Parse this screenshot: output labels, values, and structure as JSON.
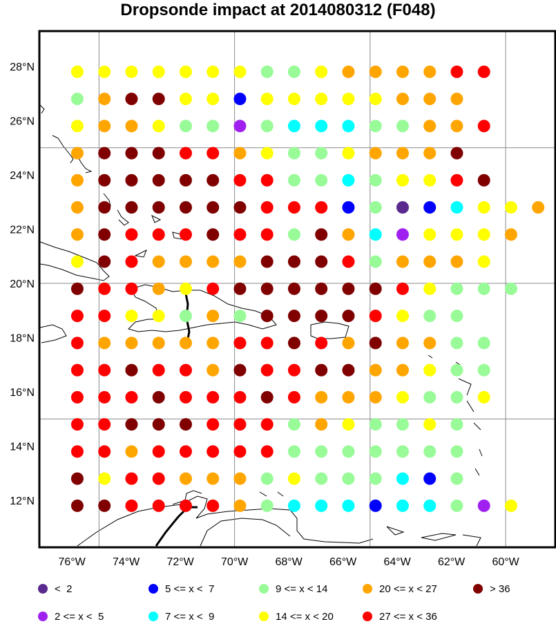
{
  "title": "Dropsonde impact at 2014080312 (F048)",
  "lat_labels": [
    "28°N",
    "26°N",
    "24°N",
    "22°N",
    "20°N",
    "18°N",
    "16°N",
    "14°N",
    "12°N"
  ],
  "lon_labels": [
    "76°W",
    "74°W",
    "72°W",
    "70°W",
    "68°W",
    "66°W",
    "64°W",
    "62°W",
    "60°W"
  ],
  "lat_values": [
    28,
    26,
    24,
    22,
    20,
    18,
    16,
    14,
    12
  ],
  "lon_values": [
    -76,
    -74,
    -72,
    -70,
    -68,
    -66,
    -64,
    -62,
    -60
  ],
  "grid_lats": [
    25,
    20,
    15
  ],
  "grid_lons": [
    -75,
    -70,
    -65,
    -60
  ],
  "colors": {
    "a": "#5b2a8f",
    "b": "#a020f0",
    "c": "#0000ff",
    "d": "#00ffff",
    "e": "#98fb98",
    "f": "#ffff00",
    "g": "#ffa500",
    "h": "#ff0000",
    "i": "#800000"
  },
  "legend": [
    {
      "key": "a",
      "label": "<  2"
    },
    {
      "key": "b",
      "label": "2 <= x <  5"
    },
    {
      "key": "c",
      "label": "5 <= x <  7"
    },
    {
      "key": "d",
      "label": "7 <= x <  9"
    },
    {
      "key": "e",
      "label": "9 <= x < 14"
    },
    {
      "key": "f",
      "label": "14 <= x < 20"
    },
    {
      "key": "g",
      "label": "20 <= x < 27"
    },
    {
      "key": "h",
      "label": "27 <= x < 36"
    },
    {
      "key": "i",
      "label": "> 36"
    }
  ],
  "grid_lat_start": 27.8,
  "grid_lat_step": -1,
  "grid_lon_start": -75.8,
  "grid_lon_step": 1,
  "points": [
    "fffffffeefgggghh",
    "egiiffcfffffggg",
    "fggfeebedddeeggh",
    "giiihhgfeefgggi",
    "giiiiihheedeffhi",
    "giiiiiihhhceacdffg",
    "gihhhihheigdbfffg",
    "fihggggiiihegggf",
    "ihhgfhiiiiiihfeee",
    "hhffegeiiiihfee",
    "hggggghhihgiggee",
    "hhihhgihhiiggfee",
    "hhhihhhihgggfeef",
    "hhiiihhhegfeefe",
    "hhghhhhheeeeeee",
    "ifhhgggefeeedce",
    "iihhhhgedddcddebf"
  ]
}
